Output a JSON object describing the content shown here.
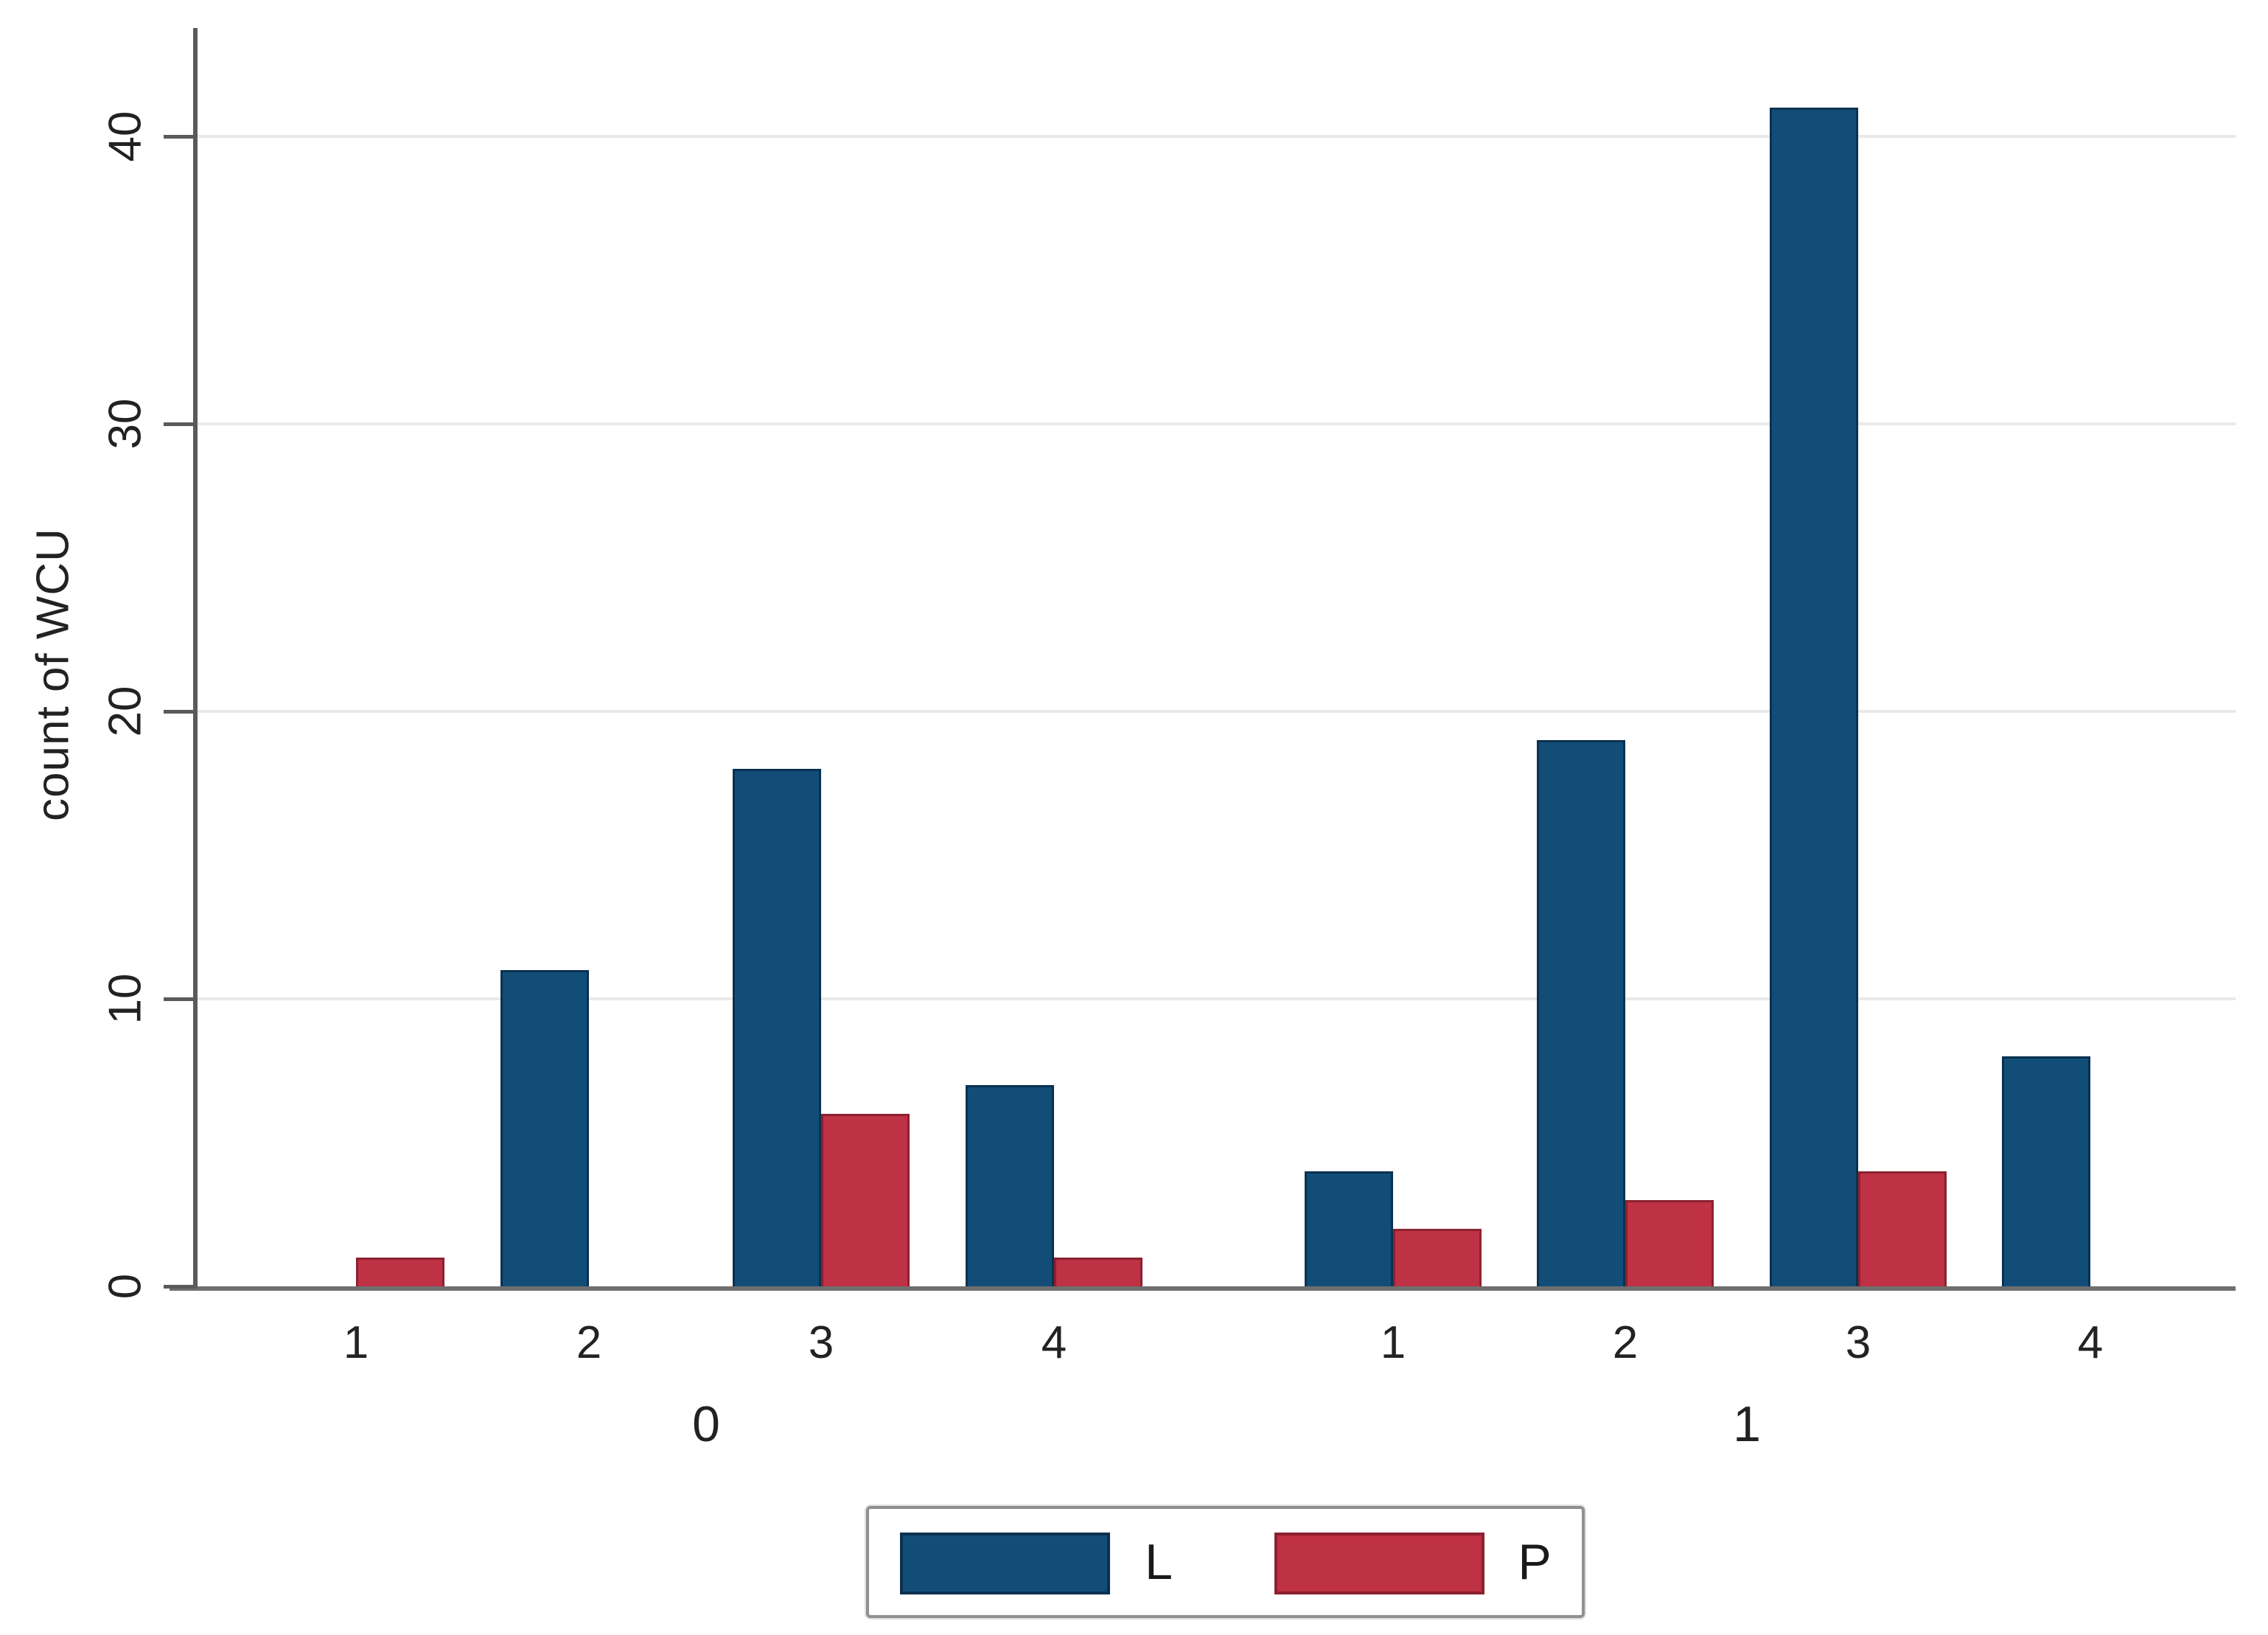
{
  "chart_data": {
    "type": "bar",
    "title": "",
    "ylabel": "count of WCU",
    "xlabel": "",
    "y_ticks": [
      0,
      10,
      20,
      30,
      40
    ],
    "ylim": [
      0,
      43.5
    ],
    "grid": true,
    "group_axis_values": [
      "0",
      "1"
    ],
    "category_ticks": [
      "1",
      "2",
      "3",
      "4"
    ],
    "groups": [
      {
        "label": "0",
        "categories": [
          "1",
          "2",
          "3",
          "4"
        ],
        "series": [
          {
            "name": "L",
            "values": [
              0,
              11,
              18,
              7
            ]
          },
          {
            "name": "P",
            "values": [
              1,
              0,
              6,
              1
            ]
          }
        ]
      },
      {
        "label": "1",
        "categories": [
          "1",
          "2",
          "3",
          "4"
        ],
        "series": [
          {
            "name": "L",
            "values": [
              4,
              19,
              41,
              8
            ]
          },
          {
            "name": "P",
            "values": [
              2,
              3,
              4,
              0
            ]
          }
        ]
      }
    ],
    "legend": {
      "position": "bottom-center",
      "entries": [
        {
          "label": "L",
          "color": "#124d78"
        },
        {
          "label": "P",
          "color": "#bf3144"
        }
      ]
    }
  },
  "colors": {
    "bar_L": "#124d78",
    "bar_L_border": "#0a3150",
    "bar_P": "#bf3144",
    "bar_P_border": "#8c2130",
    "gridline": "#e9e9e9",
    "axis": "#6f6f6f",
    "tick": "#5a5a5a",
    "text": "#222222",
    "background": "#ffffff",
    "legend_border": "#909090"
  }
}
